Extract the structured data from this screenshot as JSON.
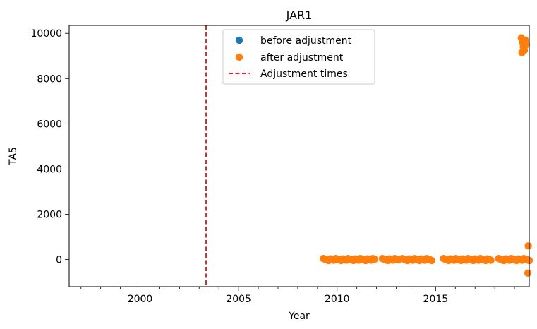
{
  "chart_data": {
    "type": "scatter",
    "title": "JAR1",
    "xlabel": "Year",
    "ylabel": "TA5",
    "xlim": [
      1996.4,
      2019.75
    ],
    "ylim": [
      -1200,
      10350
    ],
    "x_ticks": [
      2000,
      2005,
      2010,
      2015
    ],
    "y_ticks": [
      0,
      2000,
      4000,
      6000,
      8000,
      10000
    ],
    "grid": false,
    "legend_position": "top-center",
    "series": [
      {
        "name": "before adjustment",
        "color": "#1f77b4",
        "marker": "circle",
        "x": [],
        "y": []
      },
      {
        "name": "after adjustment",
        "color": "#ff7f0e",
        "marker": "circle",
        "clusters": [
          {
            "x_start": 2009.3,
            "x_end": 2011.9,
            "y": 0
          },
          {
            "x_start": 2012.3,
            "x_end": 2013.1,
            "y": 0
          },
          {
            "x_start": 2013.3,
            "x_end": 2014.8,
            "y": 0
          },
          {
            "x_start": 2015.4,
            "x_end": 2017.8,
            "y": 0
          },
          {
            "x_start": 2018.2,
            "x_end": 2019.75,
            "y": 0
          }
        ],
        "x": [
          2019.35,
          2019.4,
          2019.45,
          2019.5,
          2019.55,
          2019.6,
          2019.38,
          2019.48,
          2019.58,
          2019.7,
          2019.68
        ],
        "y": [
          9800,
          9600,
          9400,
          9250,
          9700,
          9500,
          9150,
          9350,
          9550,
          600,
          -600
        ]
      },
      {
        "name": "Adjustment times",
        "color": "#d62728",
        "line_style": "dashed",
        "x": [
          2003.35
        ]
      }
    ]
  }
}
